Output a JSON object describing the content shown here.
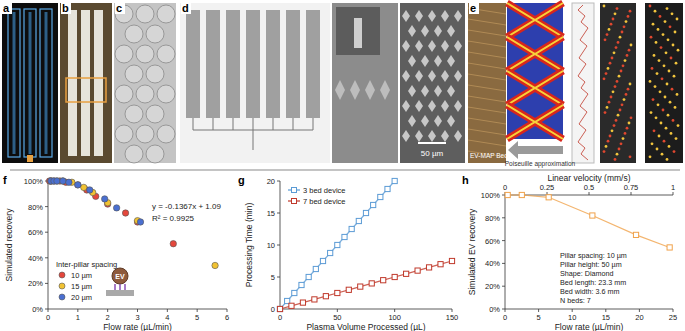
{
  "panels": {
    "labels": [
      "a",
      "b",
      "c",
      "d",
      "e"
    ],
    "scale_bar": "50 µm",
    "bed_label": "EV-MAP Bed",
    "arrow_label": "Poiseuille approximation"
  },
  "chart_data": [
    {
      "type": "scatter",
      "title": "f",
      "x_label": "Flow rate (µL/min)",
      "y_label": "Simulated recovery",
      "xlim": [
        0,
        6
      ],
      "xticks": [
        0,
        1,
        2,
        3,
        4,
        5,
        6
      ],
      "ylim": [
        0,
        100
      ],
      "yticks": [
        {
          "value": 0,
          "label": "0%"
        },
        {
          "value": 20,
          "label": "20%"
        },
        {
          "value": 40,
          "label": "40%"
        },
        {
          "value": 60,
          "label": "60%"
        },
        {
          "value": 80,
          "label": "80%"
        },
        {
          "value": 100,
          "label": "100%"
        }
      ],
      "legend": "lower-left",
      "legend_title": "Inter-pillar spacing",
      "annotations": [
        "y = -0.1367x + 1.09",
        "R² = 0.9925"
      ],
      "inset_label": "EV",
      "series": [
        {
          "name": "10 µm",
          "color": "#e4473c",
          "marker": "circle",
          "x": [
            0.05,
            0.1,
            0.2,
            0.4,
            0.6,
            1.0,
            1.3,
            1.6,
            2.0,
            2.6,
            3.0,
            4.2
          ],
          "values": [
            100,
            100,
            100,
            100,
            99,
            97,
            93,
            88,
            82,
            75,
            68,
            51
          ]
        },
        {
          "name": "15 µm",
          "color": "#f1c232",
          "marker": "circle",
          "x": [
            0.1,
            0.3,
            0.5,
            0.8,
            1.2,
            1.5,
            2.0,
            3.0,
            5.6
          ],
          "values": [
            100,
            100,
            100,
            99,
            95,
            91,
            83,
            69,
            34
          ]
        },
        {
          "name": "20 µm",
          "color": "#4a6fd0",
          "marker": "circle",
          "x": [
            0.1,
            0.2,
            0.3,
            0.5,
            0.7,
            1.0,
            1.4,
            1.9,
            2.3,
            3.1
          ],
          "values": [
            100,
            100,
            100,
            100,
            99,
            97,
            93,
            86,
            79,
            68
          ]
        }
      ]
    },
    {
      "type": "line",
      "title": "g",
      "x_label": "Plasma Volume Processed (µL)",
      "y_label": "Processing Time (min)",
      "xlim": [
        0,
        150
      ],
      "xticks": [
        0,
        50,
        100,
        150
      ],
      "ylim": [
        0,
        20
      ],
      "yticks": [
        0,
        5,
        10,
        15,
        20
      ],
      "legend": "upper-left",
      "series": [
        {
          "name": "3 bed device",
          "color": "#5b9bd5",
          "marker": "square",
          "x": [
            0,
            6.25,
            12.5,
            18.75,
            25,
            31.25,
            37.5,
            43.75,
            50,
            56.25,
            62.5,
            68.75,
            75,
            81.25,
            87.5,
            93.75,
            100
          ],
          "values": [
            0,
            1.25,
            2.5,
            3.75,
            5,
            6.25,
            7.5,
            8.75,
            10,
            11.25,
            12.5,
            13.75,
            15,
            16.25,
            17.5,
            18.75,
            20
          ]
        },
        {
          "name": "7 bed device",
          "color": "#c0392b",
          "marker": "square",
          "x": [
            0,
            10,
            20,
            30,
            40,
            50,
            60,
            70,
            80,
            90,
            100,
            110,
            120,
            130,
            140,
            150
          ],
          "values": [
            0,
            0.5,
            1,
            1.5,
            2,
            2.5,
            3,
            3.5,
            4,
            4.5,
            5,
            5.5,
            6,
            6.5,
            7,
            7.5
          ]
        }
      ]
    },
    {
      "type": "line",
      "title": "h",
      "x_label": "Flow rate (µL/min)",
      "x2_label": "Linear velocity (mm/s)",
      "y_label": "Simulated EV recovery",
      "xlim": [
        0,
        25
      ],
      "xticks": [
        0,
        5,
        10,
        15,
        20,
        25
      ],
      "x2lim": [
        0,
        1
      ],
      "x2ticks": [
        0,
        0.25,
        0.5,
        0.75,
        1
      ],
      "ylim": [
        0,
        100
      ],
      "yticks": [
        {
          "value": 0,
          "label": "0%"
        },
        {
          "value": 20,
          "label": "20%"
        },
        {
          "value": 40,
          "label": "40%"
        },
        {
          "value": 60,
          "label": "60%"
        },
        {
          "value": 80,
          "label": "80%"
        },
        {
          "value": 100,
          "label": "100%"
        }
      ],
      "annotations": [
        "Pillar spacing: 10 µm",
        "Pillar height: 50 µm",
        "Shape: Diamond",
        "Bed length: 23.3 mm",
        "Bed width: 3.6 mm",
        "N beds: 7"
      ],
      "series": [
        {
          "color": "#f0a24b",
          "marker": "square",
          "x": [
            0.4,
            2.5,
            6.5,
            13,
            19.5,
            24.5
          ],
          "values": [
            100,
            100,
            98,
            82,
            65,
            54
          ]
        }
      ]
    }
  ]
}
